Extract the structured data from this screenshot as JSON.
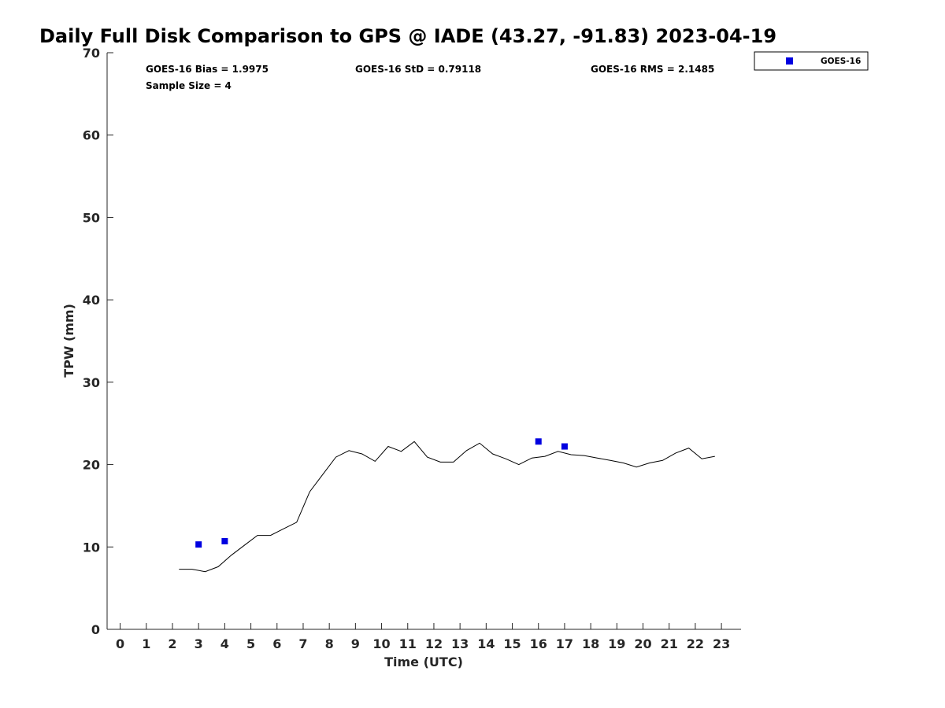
{
  "chart_data": {
    "type": "scatter",
    "title": "Daily Full Disk Comparison to GPS @ IADE (43.27, -91.83) 2023-04-19",
    "xlabel": "Time (UTC)",
    "ylabel": "TPW (mm)",
    "xlim": [
      -0.5,
      23.75
    ],
    "ylim": [
      0,
      70
    ],
    "xticks": [
      0,
      1,
      2,
      3,
      4,
      5,
      6,
      7,
      8,
      9,
      10,
      11,
      12,
      13,
      14,
      15,
      16,
      17,
      18,
      19,
      20,
      21,
      22,
      23
    ],
    "yticks": [
      0,
      10,
      20,
      30,
      40,
      50,
      60,
      70
    ],
    "grid": false,
    "legend_position": "top-right",
    "stats": {
      "bias": "GOES-16 Bias = 1.9975",
      "std": "GOES-16 StD = 0.79118",
      "rms": "GOES-16 RMS = 2.1485",
      "sample_size": "Sample Size = 4"
    },
    "series": [
      {
        "name": "GOES-16",
        "kind": "scatter",
        "marker": "square",
        "color": "#0000e0",
        "x": [
          3,
          4,
          16,
          17
        ],
        "y": [
          10.3,
          10.7,
          22.8,
          22.2
        ]
      },
      {
        "kind": "line",
        "color": "#000000",
        "x": [
          2.25,
          2.75,
          3.25,
          3.75,
          4.25,
          4.75,
          5.25,
          5.75,
          6.25,
          6.75,
          7.25,
          7.75,
          8.25,
          8.75,
          9.25,
          9.75,
          10.25,
          10.75,
          11.25,
          11.75,
          12.25,
          12.75,
          13.25,
          13.75,
          14.25,
          14.75,
          15.25,
          15.75,
          16.25,
          16.75,
          17.25,
          17.75,
          18.25,
          18.75,
          19.25,
          19.75,
          20.25,
          20.75,
          21.25,
          21.75,
          22.25,
          22.75
        ],
        "y": [
          7.3,
          7.3,
          7.0,
          7.6,
          9.0,
          10.2,
          11.4,
          11.4,
          12.2,
          13.0,
          16.7,
          18.8,
          20.9,
          21.7,
          21.3,
          20.4,
          22.2,
          21.6,
          22.8,
          20.9,
          20.3,
          20.3,
          21.7,
          22.6,
          21.3,
          20.7,
          20.0,
          20.8,
          21.0,
          21.6,
          21.2,
          21.1,
          20.8,
          20.5,
          20.2,
          19.7,
          20.2,
          20.5,
          21.4,
          22.0,
          20.7,
          21.0
        ]
      }
    ]
  }
}
